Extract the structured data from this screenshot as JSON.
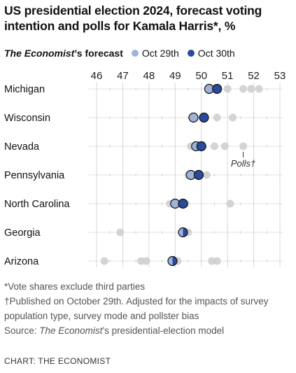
{
  "title": "US presidential election 2024, forecast voting intention and polls for Kamala Harris*, %",
  "legend": {
    "forecast_label_italic": "The Economist",
    "forecast_label_rest": "’s forecast",
    "series": [
      {
        "name": "Oct 29th",
        "color": "#9fb3d9"
      },
      {
        "name": "Oct 30th",
        "color": "#2a4a9a"
      }
    ]
  },
  "annotation": "Polls†",
  "notes": {
    "line1": "*Vote shares exclude third parties",
    "line2": "†Published on October 29th. Adjusted for the impacts of survey population type, survey mode and pollster bias",
    "line3_prefix": "Source: ",
    "line3_italic": "The Economist",
    "line3_rest": "’s presidential-election model"
  },
  "credit": "CHART: THE ECONOMIST",
  "colors": {
    "poll": "#cfcfcf",
    "oct29": "#9fb3d9",
    "oct30": "#2a4a9a",
    "grid": "#d9d9d9",
    "axis": "#111111"
  },
  "chart_data": {
    "type": "scatter",
    "title": "US presidential election 2024, forecast voting intention and polls for Kamala Harris*, %",
    "xlim": [
      46,
      53
    ],
    "xticks": [
      46,
      47,
      48,
      49,
      50,
      51,
      52,
      53
    ],
    "categories": [
      "Michigan",
      "Wisconsin",
      "Nevada",
      "Pennsylvania",
      "North Carolina",
      "Georgia",
      "Arizona"
    ],
    "series": [
      {
        "name": "Oct 29th",
        "values": [
          50.3,
          49.7,
          49.8,
          49.6,
          49.0,
          49.3,
          48.9
        ]
      },
      {
        "name": "Oct 30th",
        "values": [
          50.6,
          50.1,
          50.0,
          49.9,
          49.3,
          49.3,
          48.9
        ]
      }
    ],
    "polls": [
      [
        50.4,
        51.0,
        51.6,
        51.9,
        52.2
      ],
      [
        49.7,
        50.6,
        51.2
      ],
      [
        49.6,
        49.8,
        50.5,
        50.9,
        51.6
      ],
      [
        49.5,
        49.8,
        50.2
      ],
      [
        48.8,
        49.0,
        49.4,
        51.1
      ],
      [
        46.9,
        49.5
      ],
      [
        46.3,
        47.7,
        47.9,
        49.1,
        50.4,
        50.6
      ]
    ],
    "grid": true
  }
}
